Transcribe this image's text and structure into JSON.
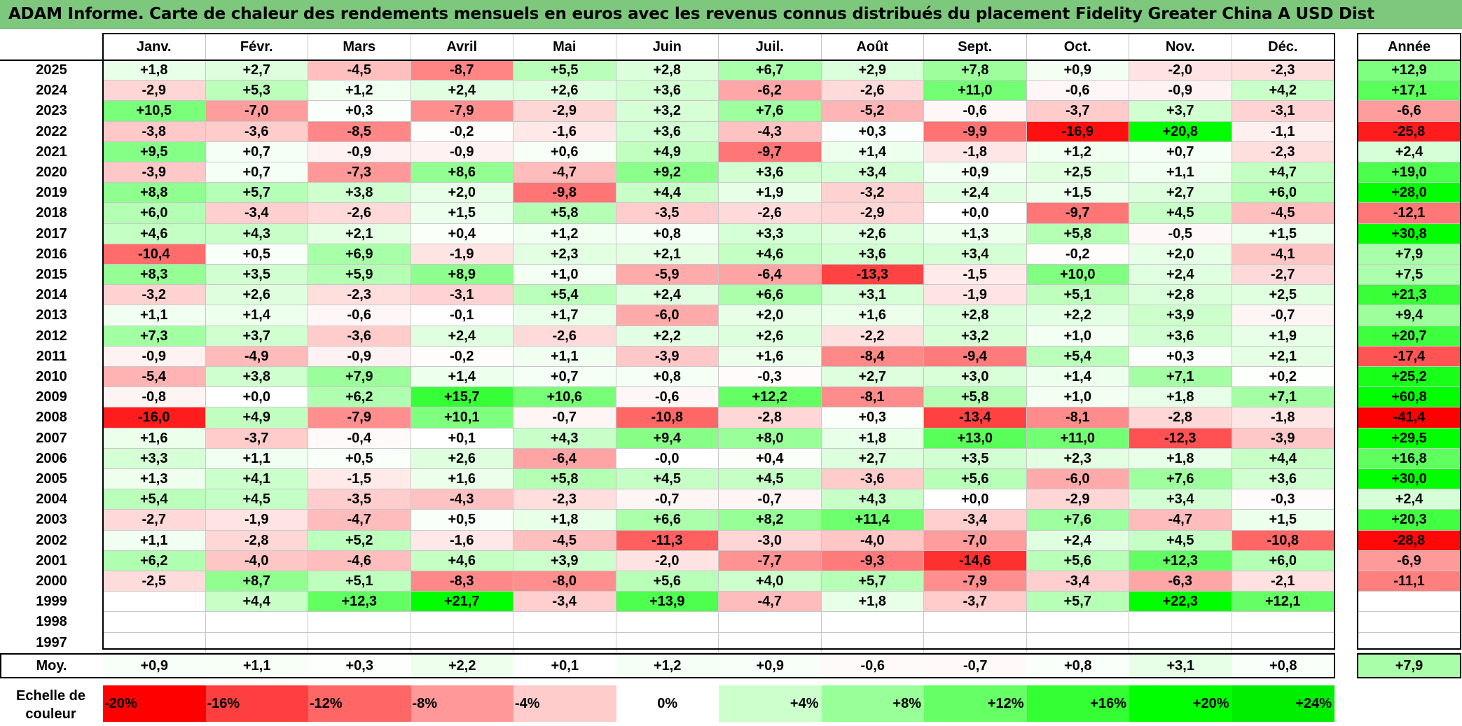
{
  "title": "ADAM Informe. Carte de chaleur des rendements mensuels en euros avec les revenus connus distribués du placement Fidelity Greater China A USD Dist",
  "chart_data": {
    "type": "heatmap",
    "title": "ADAM Informe. Carte de chaleur des rendements mensuels en euros avec les revenus connus distribués du placement Fidelity Greater China A USD Dist",
    "months": [
      "Janv.",
      "Févr.",
      "Mars",
      "Avril",
      "Mai",
      "Juin",
      "Juil.",
      "Août",
      "Sept.",
      "Oct.",
      "Nov.",
      "Déc."
    ],
    "annual_header": "Année",
    "rows": [
      {
        "year": "2025",
        "values": [
          "+1,8",
          "+2,7",
          "-4,5",
          "-8,7",
          "+5,5",
          "+2,8",
          "+6,7",
          "+2,9",
          "+7,8",
          "+0,9",
          "-2,0",
          "-2,3"
        ],
        "annual": "+12,9"
      },
      {
        "year": "2024",
        "values": [
          "-2,9",
          "+5,3",
          "+1,2",
          "+2,4",
          "+2,6",
          "+3,6",
          "-6,2",
          "-2,6",
          "+11,0",
          "-0,6",
          "-0,9",
          "+4,2"
        ],
        "annual": "+17,1"
      },
      {
        "year": "2023",
        "values": [
          "+10,5",
          "-7,0",
          "+0,3",
          "-7,9",
          "-2,9",
          "+3,2",
          "+7,6",
          "-5,2",
          "-0,6",
          "-3,7",
          "+3,7",
          "-3,1"
        ],
        "annual": "-6,6"
      },
      {
        "year": "2022",
        "values": [
          "-3,8",
          "-3,6",
          "-8,5",
          "-0,2",
          "-1,6",
          "+3,6",
          "-4,3",
          "+0,3",
          "-9,9",
          "-16,9",
          "+20,8",
          "-1,1"
        ],
        "annual": "-25,8"
      },
      {
        "year": "2021",
        "values": [
          "+9,5",
          "+0,7",
          "-0,9",
          "-0,9",
          "+0,6",
          "+4,9",
          "-9,7",
          "+1,4",
          "-1,8",
          "+1,2",
          "+0,7",
          "-2,3"
        ],
        "annual": "+2,4"
      },
      {
        "year": "2020",
        "values": [
          "-3,9",
          "+0,7",
          "-7,3",
          "+8,6",
          "-4,7",
          "+9,2",
          "+3,6",
          "+3,4",
          "+0,9",
          "+2,5",
          "+1,1",
          "+4,7"
        ],
        "annual": "+19,0"
      },
      {
        "year": "2019",
        "values": [
          "+8,8",
          "+5,7",
          "+3,8",
          "+2,0",
          "-9,8",
          "+4,4",
          "+1,9",
          "-3,2",
          "+2,4",
          "+1,5",
          "+2,7",
          "+6,0"
        ],
        "annual": "+28,0"
      },
      {
        "year": "2018",
        "values": [
          "+6,0",
          "-3,4",
          "-2,6",
          "+1,5",
          "+5,8",
          "-3,5",
          "-2,6",
          "-2,9",
          "+0,0",
          "-9,7",
          "+4,5",
          "-4,5"
        ],
        "annual": "-12,1"
      },
      {
        "year": "2017",
        "values": [
          "+4,6",
          "+4,3",
          "+2,1",
          "+0,4",
          "+1,2",
          "+0,8",
          "+3,3",
          "+2,6",
          "+1,3",
          "+5,8",
          "-0,5",
          "+1,5"
        ],
        "annual": "+30,8"
      },
      {
        "year": "2016",
        "values": [
          "-10,4",
          "+0,5",
          "+6,9",
          "-1,9",
          "+2,3",
          "+2,1",
          "+4,6",
          "+3,6",
          "+3,4",
          "-0,2",
          "+2,0",
          "-4,1"
        ],
        "annual": "+7,9"
      },
      {
        "year": "2015",
        "values": [
          "+8,3",
          "+3,5",
          "+5,9",
          "+8,9",
          "+1,0",
          "-5,9",
          "-6,4",
          "-13,3",
          "-1,5",
          "+10,0",
          "+2,4",
          "-2,7"
        ],
        "annual": "+7,5"
      },
      {
        "year": "2014",
        "values": [
          "-3,2",
          "+2,6",
          "-2,3",
          "-3,1",
          "+5,4",
          "+2,4",
          "+6,6",
          "+3,1",
          "-1,9",
          "+5,1",
          "+2,8",
          "+2,5"
        ],
        "annual": "+21,3"
      },
      {
        "year": "2013",
        "values": [
          "+1,1",
          "+1,4",
          "-0,6",
          "-0,1",
          "+1,7",
          "-6,0",
          "+2,0",
          "+1,6",
          "+2,8",
          "+2,2",
          "+3,9",
          "-0,7"
        ],
        "annual": "+9,4"
      },
      {
        "year": "2012",
        "values": [
          "+7,3",
          "+3,7",
          "-3,6",
          "+2,4",
          "-2,6",
          "+2,2",
          "+2,6",
          "-2,2",
          "+3,2",
          "+1,0",
          "+3,6",
          "+1,9"
        ],
        "annual": "+20,7"
      },
      {
        "year": "2011",
        "values": [
          "-0,9",
          "-4,9",
          "-0,9",
          "-0,2",
          "+1,1",
          "-3,9",
          "+1,6",
          "-8,4",
          "-9,4",
          "+5,4",
          "+0,3",
          "+2,1"
        ],
        "annual": "-17,4"
      },
      {
        "year": "2010",
        "values": [
          "-5,4",
          "+3,8",
          "+7,9",
          "+1,4",
          "+0,7",
          "+0,8",
          "-0,3",
          "+2,7",
          "+3,0",
          "+1,4",
          "+7,1",
          "+0,2"
        ],
        "annual": "+25,2"
      },
      {
        "year": "2009",
        "values": [
          "-0,8",
          "+0,0",
          "+6,2",
          "+15,7",
          "+10,6",
          "-0,6",
          "+12,2",
          "-8,1",
          "+5,8",
          "+1,0",
          "+1,8",
          "+7,1"
        ],
        "annual": "+60,8"
      },
      {
        "year": "2008",
        "values": [
          "-16,0",
          "+4,9",
          "-7,9",
          "+10,1",
          "-0,7",
          "-10,8",
          "-2,8",
          "+0,3",
          "-13,4",
          "-8,1",
          "-2,8",
          "-1,8"
        ],
        "annual": "-41,4"
      },
      {
        "year": "2007",
        "values": [
          "+1,6",
          "-3,7",
          "-0,4",
          "+0,1",
          "+4,3",
          "+9,4",
          "+8,0",
          "+1,8",
          "+13,0",
          "+11,0",
          "-12,3",
          "-3,9"
        ],
        "annual": "+29,5"
      },
      {
        "year": "2006",
        "values": [
          "+3,3",
          "+1,1",
          "+0,5",
          "+2,6",
          "-6,4",
          "-0,0",
          "+0,4",
          "+2,7",
          "+3,5",
          "+2,3",
          "+1,8",
          "+4,4"
        ],
        "annual": "+16,8"
      },
      {
        "year": "2005",
        "values": [
          "+1,3",
          "+4,1",
          "-1,5",
          "+1,6",
          "+5,8",
          "+4,5",
          "+4,5",
          "-3,6",
          "+5,6",
          "-6,0",
          "+7,6",
          "+3,6"
        ],
        "annual": "+30,0"
      },
      {
        "year": "2004",
        "values": [
          "+5,4",
          "+4,5",
          "-3,5",
          "-4,3",
          "-2,3",
          "-0,7",
          "-0,7",
          "+4,3",
          "+0,0",
          "-2,9",
          "+3,4",
          "-0,3"
        ],
        "annual": "+2,4"
      },
      {
        "year": "2003",
        "values": [
          "-2,7",
          "-1,9",
          "-4,7",
          "+0,5",
          "+1,8",
          "+6,6",
          "+8,2",
          "+11,4",
          "-3,4",
          "+7,6",
          "-4,7",
          "+1,5"
        ],
        "annual": "+20,3"
      },
      {
        "year": "2002",
        "values": [
          "+1,1",
          "-2,8",
          "+5,2",
          "-1,6",
          "-4,5",
          "-11,3",
          "-3,0",
          "-4,0",
          "-7,0",
          "+2,4",
          "+4,5",
          "-10,8"
        ],
        "annual": "-28,8"
      },
      {
        "year": "2001",
        "values": [
          "+6,2",
          "-4,0",
          "-4,6",
          "+4,6",
          "+3,9",
          "-2,0",
          "-7,7",
          "-9,3",
          "-14,6",
          "+5,6",
          "+12,3",
          "+6,0"
        ],
        "annual": "-6,9"
      },
      {
        "year": "2000",
        "values": [
          "-2,5",
          "+8,7",
          "+5,1",
          "-8,3",
          "-8,0",
          "+5,6",
          "+4,0",
          "+5,7",
          "-7,9",
          "-3,4",
          "-6,3",
          "-2,1"
        ],
        "annual": "-11,1"
      },
      {
        "year": "1999",
        "values": [
          "",
          "+4,4",
          "+12,3",
          "+21,7",
          "-3,4",
          "+13,9",
          "-4,7",
          "+1,8",
          "-3,7",
          "+5,7",
          "+22,3",
          "+12,1"
        ],
        "annual": ""
      },
      {
        "year": "1998",
        "values": [
          "",
          "",
          "",
          "",
          "",
          "",
          "",
          "",
          "",
          "",
          "",
          ""
        ],
        "annual": ""
      },
      {
        "year": "1997",
        "values": [
          "",
          "",
          "",
          "",
          "",
          "",
          "",
          "",
          "",
          "",
          "",
          ""
        ],
        "annual": ""
      }
    ],
    "average": {
      "label": "Moy.",
      "values": [
        "+0,9",
        "+1,1",
        "+0,3",
        "+2,2",
        "+0,1",
        "+1,2",
        "+0,9",
        "-0,6",
        "-0,7",
        "+0,8",
        "+3,1",
        "+0,8"
      ],
      "annual": "+7,9"
    },
    "color_scale": {
      "label": "Echelle de couleur",
      "steps": [
        "-20%",
        "-16%",
        "-12%",
        "-8%",
        "-4%",
        "0%",
        "+4%",
        "+8%",
        "+12%",
        "+16%",
        "+20%",
        "+24%"
      ],
      "colors": [
        "#ff0000",
        "#ff3f3f",
        "#ff6666",
        "#ff9999",
        "#ffcccc",
        "#ffffff",
        "#ccffcc",
        "#99ff99",
        "#66ff66",
        "#33ff33",
        "#00ff00",
        "#00ee00"
      ]
    }
  }
}
